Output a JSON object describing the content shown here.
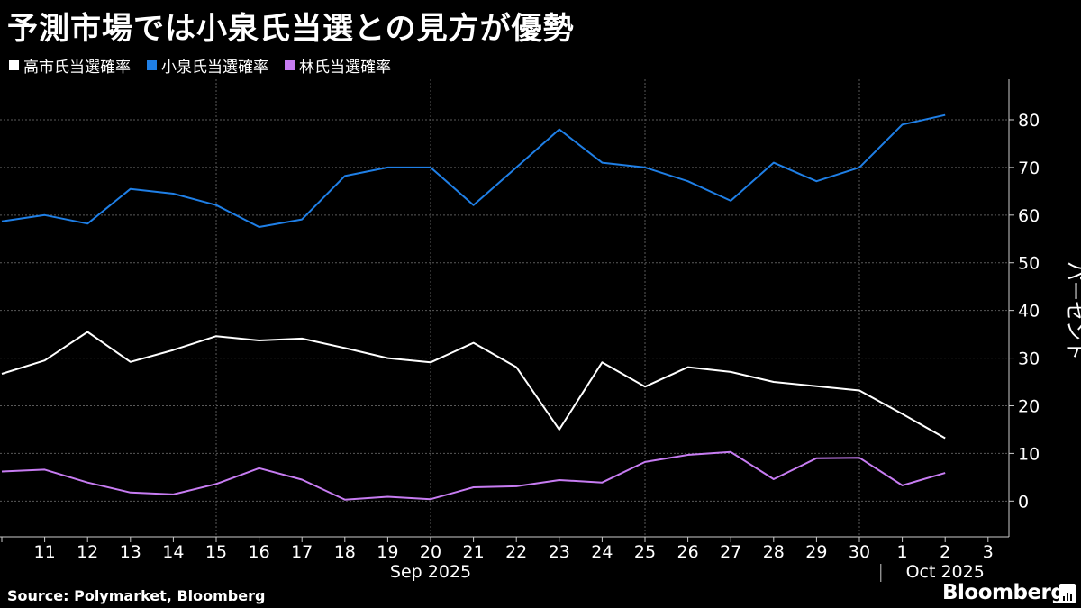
{
  "title": "予測市場では小泉氏当選との見方が優勢",
  "legend": [
    {
      "label": "高市氏当選確率",
      "color": "#ffffff"
    },
    {
      "label": "小泉氏当選確率",
      "color": "#1f7fe6"
    },
    {
      "label": "林氏当選確率",
      "color": "#c77cf2"
    }
  ],
  "footer": {
    "source": "Source:  Polymarket, Bloomberg",
    "brand": "Bloomberg"
  },
  "chart_data": {
    "type": "line",
    "y_axis_label": "パーセント",
    "y_axis_side": "right",
    "y_ticks": [
      0,
      10,
      20,
      30,
      40,
      50,
      60,
      70,
      80
    ],
    "ylim": [
      -7.5,
      88.5
    ],
    "grid": true,
    "x": [
      "10",
      "11",
      "12",
      "13",
      "14",
      "15",
      "16",
      "17",
      "18",
      "19",
      "20",
      "21",
      "22",
      "23",
      "24",
      "25",
      "26",
      "27",
      "28",
      "29",
      "30",
      "1",
      "2",
      "3"
    ],
    "x_tick_labels": [
      "11",
      "12",
      "13",
      "14",
      "15",
      "16",
      "17",
      "18",
      "19",
      "20",
      "21",
      "22",
      "23",
      "24",
      "25",
      "26",
      "27",
      "28",
      "29",
      "30",
      "1",
      "2",
      "3"
    ],
    "month_labels": [
      {
        "label": "Sep 2025",
        "center_day": "20"
      },
      {
        "label": "Oct 2025",
        "center_day": "2"
      }
    ],
    "series": [
      {
        "name": "高市氏当選確率",
        "color": "#ffffff",
        "values": [
          26.7,
          29.5,
          35.5,
          29.2,
          31.7,
          34.6,
          33.7,
          34.1,
          32.1,
          30,
          29.1,
          33.2,
          28.1,
          15,
          29.1,
          24,
          28.1,
          27.1,
          25,
          24.1,
          23.2,
          18.3,
          13.2,
          null
        ]
      },
      {
        "name": "小泉氏当選確率",
        "color": "#1f7fe6",
        "values": [
          58.7,
          60.0,
          58.2,
          65.5,
          64.5,
          62.1,
          57.5,
          59.1,
          68.2,
          70.0,
          70.0,
          62.1,
          70.0,
          78.0,
          71.0,
          70.0,
          67.1,
          63.0,
          71.0,
          67.1,
          70.0,
          79.0,
          81.0,
          null
        ]
      },
      {
        "name": "林氏当選確率",
        "color": "#c77cf2",
        "values": [
          6.2,
          6.6,
          3.9,
          1.8,
          1.4,
          3.6,
          6.9,
          4.5,
          0.3,
          0.9,
          0.4,
          2.9,
          3.1,
          4.4,
          3.9,
          8.2,
          9.7,
          10.3,
          4.6,
          9.0,
          9.1,
          3.3,
          5.9,
          null
        ]
      }
    ]
  }
}
